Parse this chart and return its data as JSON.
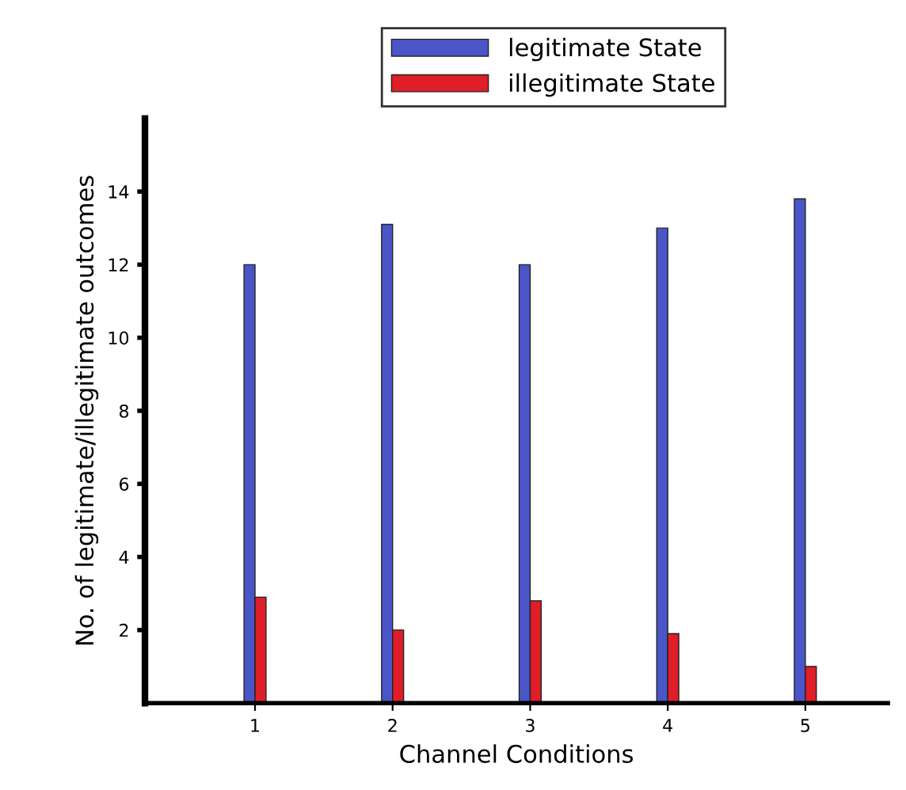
{
  "chart_data": {
    "type": "bar",
    "xlabel": "Channel Conditions",
    "ylabel": "No. of legitimate/illegitimate outcomes",
    "categories": [
      "1",
      "2",
      "3",
      "4",
      "5"
    ],
    "series": [
      {
        "name": "legitimate State",
        "color": "#4a55c8",
        "values": [
          12,
          13.1,
          12,
          13,
          13.8
        ]
      },
      {
        "name": "illegitimate State",
        "color": "#e01e28",
        "values": [
          2.9,
          2.0,
          2.8,
          1.9,
          1.0
        ]
      }
    ],
    "ylim": [
      0,
      16
    ],
    "yticks": [
      2,
      4,
      6,
      8,
      10,
      12,
      14
    ],
    "grid": false,
    "legend": "top"
  }
}
